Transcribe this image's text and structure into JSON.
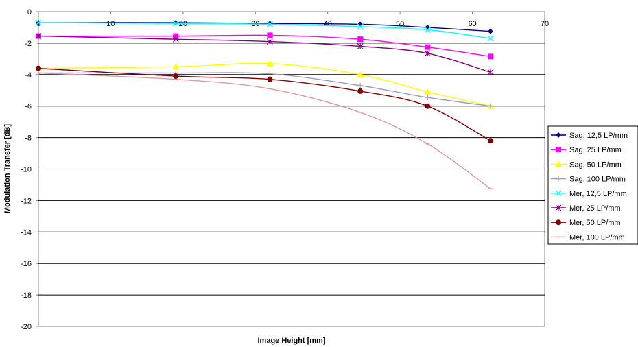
{
  "chart_data": {
    "type": "line",
    "title": "",
    "xlabel": "Image Height [mm]",
    "ylabel": "Modulation Transfer [dB]",
    "xlim": [
      0,
      70
    ],
    "ylim": [
      -20,
      0
    ],
    "xticks": [
      0,
      10,
      20,
      30,
      40,
      50,
      60,
      70
    ],
    "yticks": [
      0,
      -2,
      -4,
      -6,
      -8,
      -10,
      -12,
      -14,
      -16,
      -18,
      -20
    ],
    "grid": "horizontal",
    "legend_position": "right",
    "x": [
      0,
      19,
      32,
      44.5,
      53.8,
      62.5
    ],
    "series": [
      {
        "name": "Sag, 12,5 LP/mm",
        "values": [
          -0.7,
          -0.7,
          -0.75,
          -0.8,
          -1.0,
          -1.25
        ],
        "color": "#000080",
        "marker": "diamond"
      },
      {
        "name": "Sag, 25 LP/mm",
        "values": [
          -1.55,
          -1.55,
          -1.5,
          -1.75,
          -2.25,
          -2.85
        ],
        "color": "#ff00ff",
        "marker": "square"
      },
      {
        "name": "Sag, 50 LP/mm",
        "values": [
          -3.6,
          -3.5,
          -3.3,
          -4.0,
          -5.1,
          -6.0
        ],
        "color": "#ffff00",
        "marker": "triangle"
      },
      {
        "name": "Sag, 100 LP/mm",
        "values": [
          -3.9,
          -3.9,
          -3.95,
          -4.7,
          -5.45,
          -6.0
        ],
        "color": "#9999cc",
        "marker": "plus"
      },
      {
        "name": "Mer, 12,5 LP/mm",
        "values": [
          -0.7,
          -0.75,
          -0.8,
          -0.95,
          -1.15,
          -1.7
        ],
        "color": "#00ffff",
        "marker": "x"
      },
      {
        "name": "Mer, 25 LP/mm",
        "values": [
          -1.55,
          -1.75,
          -1.9,
          -2.2,
          -2.65,
          -3.85
        ],
        "color": "#800080",
        "marker": "star"
      },
      {
        "name": "Mer, 50 LP/mm",
        "values": [
          -3.6,
          -4.1,
          -4.3,
          -5.05,
          -6.0,
          -8.2
        ],
        "color": "#800000",
        "marker": "circle"
      },
      {
        "name": "Mer, 100 LP/mm",
        "values": [
          -3.9,
          -4.3,
          -4.9,
          -6.4,
          -8.4,
          -11.25
        ],
        "color": "#dd9999",
        "marker": "dash"
      }
    ]
  }
}
